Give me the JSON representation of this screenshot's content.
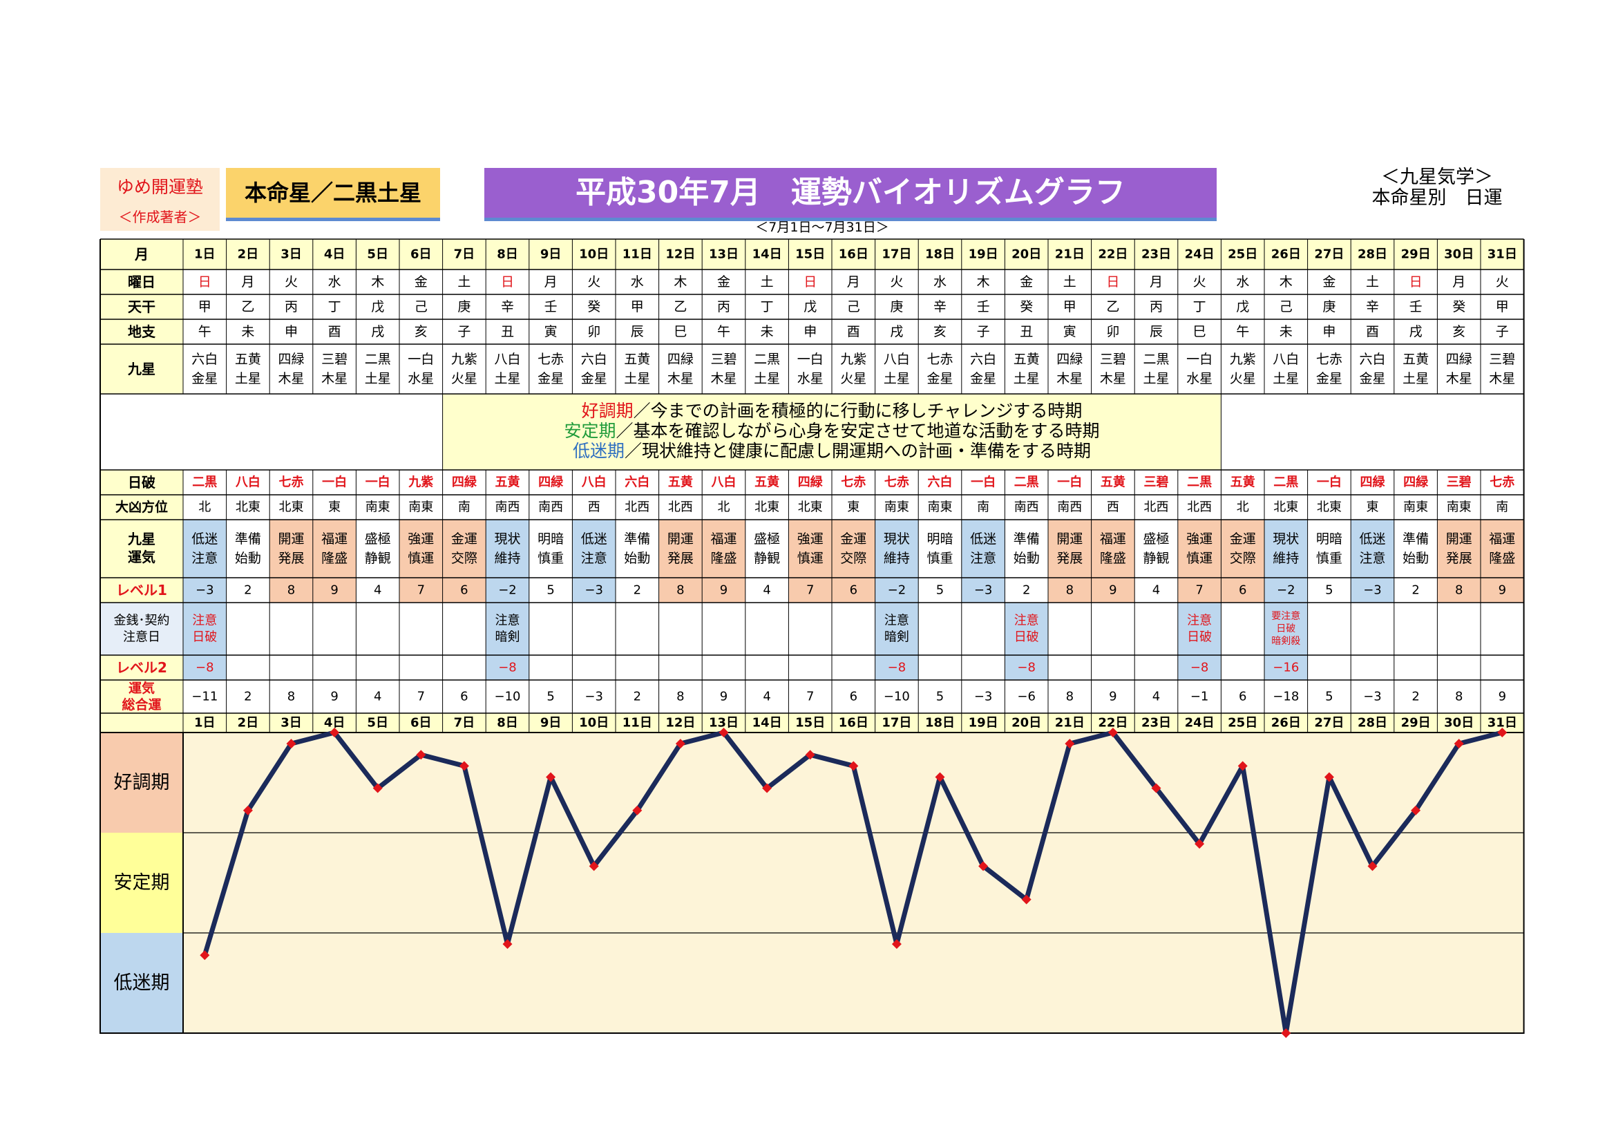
{
  "header": {
    "brand_name": "ゆめ開運塾",
    "brand_sub": "＜作成著者＞",
    "honmei": "本命星／二黒土星",
    "title": "平成30年7月　運勢バイオリズムグラフ",
    "date_range": "＜7月1日～7月31日＞",
    "kyusei_title": "＜九星気学＞",
    "kyusei_sub": "本命星別　日運"
  },
  "row_labels": {
    "month": "月",
    "weekday": "曜日",
    "tenkan": "天干",
    "chishi": "地支",
    "kyusei": "九星",
    "nippa": "日破",
    "daikyo": "大凶方位",
    "unki": "九星運気",
    "level1": "レベル1",
    "money": "金銭･契約注意日",
    "level2": "レベル2",
    "total": "運気総合運"
  },
  "legend": [
    {
      "term": "好調期",
      "text": "／今までの計画を積極的に行動に移しチャレンジする時期",
      "color": "#e1151b"
    },
    {
      "term": "安定期",
      "text": "／基本を確認しながら心身を安定させて地道な活動をする時期",
      "color": "#1f9b3a"
    },
    {
      "term": "低迷期",
      "text": "／現状維持と健康に配慮し開運期への計画・準備をする時期",
      "color": "#2f6fc0"
    }
  ],
  "phases": [
    "好調期",
    "安定期",
    "低迷期"
  ],
  "colors": {
    "header_yellow": "#ffffcc",
    "good": "#f8cbad",
    "calm": "#ffff99",
    "low": "#bdd7ee",
    "line": "#1b2a5a",
    "marker": "#e1151b",
    "red_text": "#e1151b",
    "blue_text": "#2f6fc0"
  },
  "days": [
    "1日",
    "2日",
    "3日",
    "4日",
    "5日",
    "6日",
    "7日",
    "8日",
    "9日",
    "10日",
    "11日",
    "12日",
    "13日",
    "14日",
    "15日",
    "16日",
    "17日",
    "18日",
    "19日",
    "20日",
    "21日",
    "22日",
    "23日",
    "24日",
    "25日",
    "26日",
    "27日",
    "28日",
    "29日",
    "30日",
    "31日"
  ],
  "weekdays": [
    "日",
    "月",
    "火",
    "水",
    "木",
    "金",
    "土",
    "日",
    "月",
    "火",
    "水",
    "木",
    "金",
    "土",
    "日",
    "月",
    "火",
    "水",
    "木",
    "金",
    "土",
    "日",
    "月",
    "火",
    "水",
    "木",
    "金",
    "土",
    "日",
    "月",
    "火"
  ],
  "tenkan": [
    "甲",
    "乙",
    "丙",
    "丁",
    "戊",
    "己",
    "庚",
    "辛",
    "壬",
    "癸",
    "甲",
    "乙",
    "丙",
    "丁",
    "戊",
    "己",
    "庚",
    "辛",
    "壬",
    "癸",
    "甲",
    "乙",
    "丙",
    "丁",
    "戊",
    "己",
    "庚",
    "辛",
    "壬",
    "癸",
    "甲"
  ],
  "chishi": [
    "午",
    "未",
    "申",
    "酉",
    "戌",
    "亥",
    "子",
    "丑",
    "寅",
    "卯",
    "辰",
    "巳",
    "午",
    "未",
    "申",
    "酉",
    "戌",
    "亥",
    "子",
    "丑",
    "寅",
    "卯",
    "辰",
    "巳",
    "午",
    "未",
    "申",
    "酉",
    "戌",
    "亥",
    "子"
  ],
  "kyusei": [
    "六白金星",
    "五黄土星",
    "四緑木星",
    "三碧木星",
    "二黒土星",
    "一白水星",
    "九紫火星",
    "八白土星",
    "七赤金星",
    "六白金星",
    "五黄土星",
    "四緑木星",
    "三碧木星",
    "二黒土星",
    "一白水星",
    "九紫火星",
    "八白土星",
    "七赤金星",
    "六白金星",
    "五黄土星",
    "四緑木星",
    "三碧木星",
    "二黒土星",
    "一白水星",
    "九紫火星",
    "八白土星",
    "七赤金星",
    "六白金星",
    "五黄土星",
    "四緑木星",
    "三碧木星"
  ],
  "nippa": [
    "二黒",
    "八白",
    "七赤",
    "一白",
    "一白",
    "九紫",
    "四緑",
    "五黄",
    "四緑",
    "八白",
    "六白",
    "五黄",
    "八白",
    "五黄",
    "四緑",
    "七赤",
    "七赤",
    "六白",
    "一白",
    "二黒",
    "一白",
    "五黄",
    "三碧",
    "二黒",
    "五黄",
    "二黒",
    "一白",
    "四緑",
    "四緑",
    "三碧",
    "七赤"
  ],
  "daikyo": [
    "北",
    "北東",
    "北東",
    "東",
    "南東",
    "南東",
    "南",
    "南西",
    "南西",
    "西",
    "北西",
    "北西",
    "北",
    "北東",
    "北東",
    "東",
    "南東",
    "南東",
    "南",
    "南西",
    "南西",
    "西",
    "北西",
    "北西",
    "北",
    "北東",
    "北東",
    "東",
    "南東",
    "南東",
    "南"
  ],
  "unki": [
    "低迷注意",
    "準備始動",
    "開運発展",
    "福運隆盛",
    "盛極静観",
    "強運慎運",
    "金運交際",
    "現状維持",
    "明暗慎重",
    "低迷注意",
    "準備始動",
    "開運発展",
    "福運隆盛",
    "盛極静観",
    "強運慎運",
    "金運交際",
    "現状維持",
    "明暗慎重",
    "低迷注意",
    "準備始動",
    "開運発展",
    "福運隆盛",
    "盛極静観",
    "強運慎運",
    "金運交際",
    "現状維持",
    "明暗慎重",
    "低迷注意",
    "準備始動",
    "開運発展",
    "福運隆盛"
  ],
  "level1": [
    -3,
    2,
    8,
    9,
    4,
    7,
    6,
    -2,
    5,
    -3,
    2,
    8,
    9,
    4,
    7,
    6,
    -2,
    5,
    -3,
    2,
    8,
    9,
    4,
    7,
    6,
    -2,
    5,
    -3,
    2,
    8,
    9
  ],
  "money": [
    "注意日破",
    "",
    "",
    "",
    "",
    "",
    "",
    "注意暗剣",
    "",
    "",
    "",
    "",
    "",
    "",
    "",
    "",
    "注意暗剣",
    "",
    "",
    "注意日破",
    "",
    "",
    "",
    "注意日破",
    "",
    "要注意日破暗剣殺",
    "",
    "",
    "",
    "",
    ""
  ],
  "level2": [
    -8,
    null,
    null,
    null,
    null,
    null,
    null,
    -8,
    null,
    null,
    null,
    null,
    null,
    null,
    null,
    null,
    -8,
    null,
    null,
    -8,
    null,
    null,
    null,
    -8,
    null,
    -16,
    null,
    null,
    null,
    null,
    null
  ],
  "chart_data": {
    "type": "line",
    "categories": [
      "1日",
      "2日",
      "3日",
      "4日",
      "5日",
      "6日",
      "7日",
      "8日",
      "9日",
      "10日",
      "11日",
      "12日",
      "13日",
      "14日",
      "15日",
      "16日",
      "17日",
      "18日",
      "19日",
      "20日",
      "21日",
      "22日",
      "23日",
      "24日",
      "25日",
      "26日",
      "27日",
      "28日",
      "29日",
      "30日",
      "31日"
    ],
    "series": [
      {
        "values": [
          -11,
          2,
          8,
          9,
          4,
          7,
          6,
          -10,
          5,
          -3,
          2,
          8,
          9,
          4,
          7,
          6,
          -10,
          5,
          -3,
          -6,
          8,
          9,
          4,
          -1,
          6,
          -18,
          5,
          -3,
          2,
          8,
          9
        ]
      }
    ],
    "ylim": [
      -18,
      9
    ],
    "bands": [
      "好調期",
      "安定期",
      "低迷期"
    ],
    "grid": true
  }
}
